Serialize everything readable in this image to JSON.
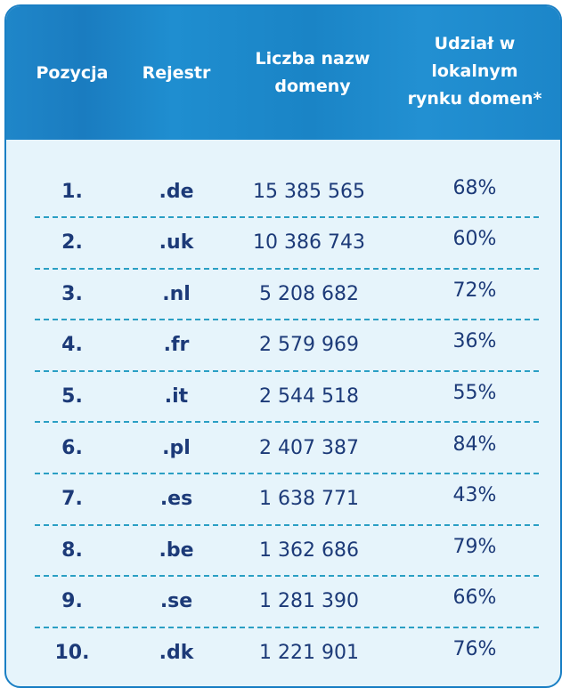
{
  "header": {
    "position": "Pozycja",
    "registry": "Rejestr",
    "count_line1": "Liczba nazw",
    "count_line2": "domeny",
    "share_line1": "Udział w",
    "share_line2": "lokalnym",
    "share_line3": "rynku domen*"
  },
  "chart_data": {
    "type": "table",
    "columns": [
      "Pozycja",
      "Rejestr",
      "Liczba nazw domeny",
      "Udział w lokalnym rynku domen*"
    ],
    "rows": [
      {
        "position": "1.",
        "registry": ".de",
        "count": "15 385 565",
        "share": "68%"
      },
      {
        "position": "2.",
        "registry": ".uk",
        "count": "10 386 743",
        "share": "60%"
      },
      {
        "position": "3.",
        "registry": ".nl",
        "count": "5 208 682",
        "share": "72%"
      },
      {
        "position": "4.",
        "registry": ".fr",
        "count": "2 579 969",
        "share": "36%"
      },
      {
        "position": "5.",
        "registry": ".it",
        "count": "2 544 518",
        "share": "55%"
      },
      {
        "position": "6.",
        "registry": ".pl",
        "count": "2 407 387",
        "share": "84%"
      },
      {
        "position": "7.",
        "registry": ".es",
        "count": "1 638 771",
        "share": "43%"
      },
      {
        "position": "8.",
        "registry": ".be",
        "count": "1 362 686",
        "share": "79%"
      },
      {
        "position": "9.",
        "registry": ".se",
        "count": "1 281 390",
        "share": "66%"
      },
      {
        "position": "10.",
        "registry": ".dk",
        "count": "1 221 901",
        "share": "76%"
      }
    ]
  },
  "colors": {
    "header_bg": "#1a84c6",
    "body_bg": "#e6f4fb",
    "text": "#1c3a78",
    "divider": "#2a9fc4",
    "border": "#1a7fc4"
  }
}
